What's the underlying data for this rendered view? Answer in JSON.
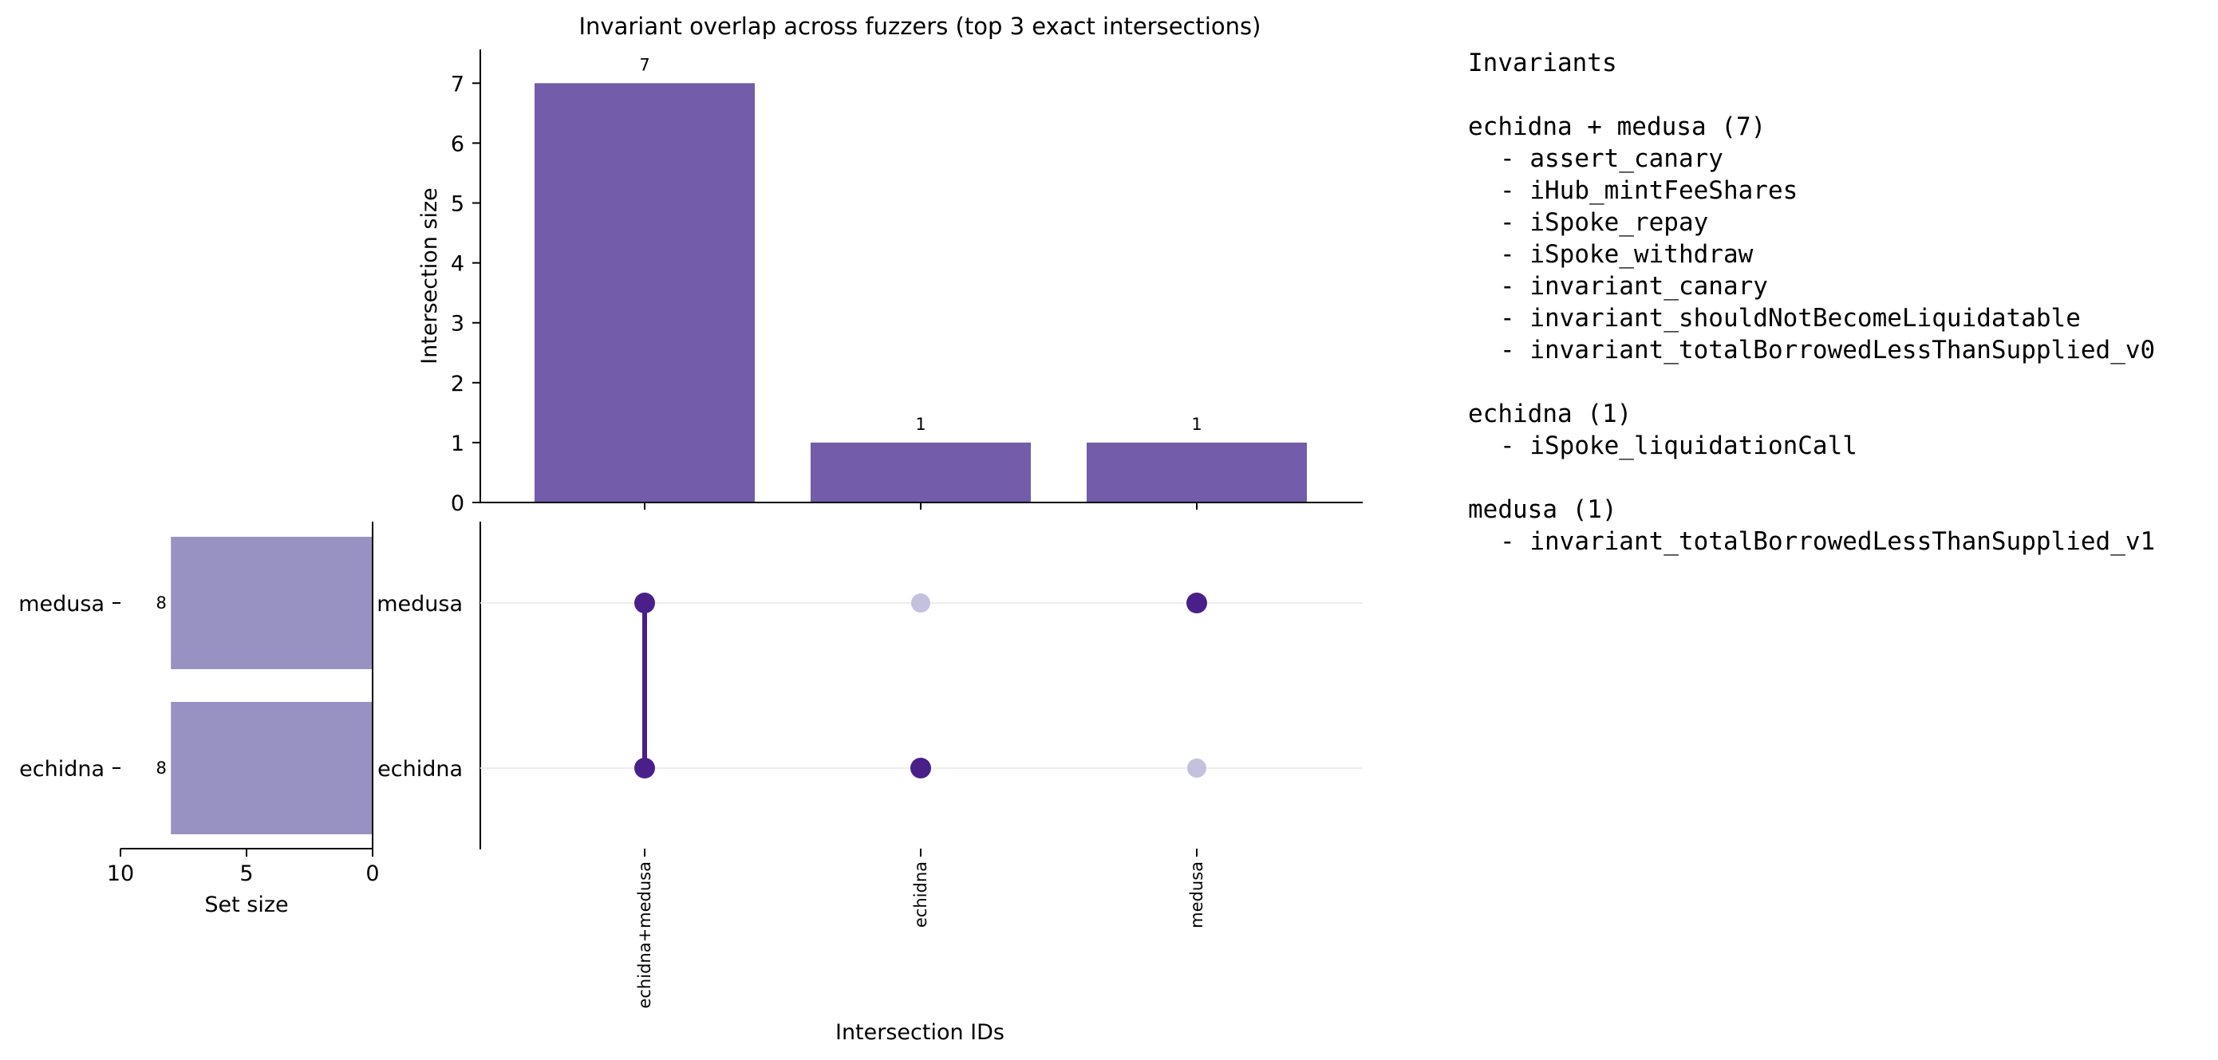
{
  "chart_data": {
    "type": "bar",
    "title": "Invariant overlap across fuzzers (top 3 exact intersections)",
    "ylabel": "Intersection size",
    "xlabel": "Intersection IDs",
    "ylim": [
      0,
      7.6
    ],
    "yticks": [
      0,
      1,
      2,
      3,
      4,
      5,
      6,
      7
    ],
    "categories": [
      "echidna+medusa",
      "echidna",
      "medusa"
    ],
    "values": [
      7,
      1,
      1
    ],
    "bar_color": "#735ca9",
    "sets": [
      {
        "name": "medusa",
        "size": 8
      },
      {
        "name": "echidna",
        "size": 8
      }
    ],
    "membership": [
      {
        "medusa": true,
        "echidna": true
      },
      {
        "medusa": false,
        "echidna": true
      },
      {
        "medusa": true,
        "echidna": false
      }
    ],
    "set_size_label": "Set size",
    "set_size_xlim": [
      10,
      0
    ],
    "set_size_ticks": [
      10,
      5,
      0
    ],
    "set_bar_color": "#9892c3",
    "dot_active_color": "#4a1f8a",
    "dot_inactive_color": "#c3c1de"
  },
  "legend_panel": {
    "header": "Invariants",
    "groups": [
      {
        "title": "echidna + medusa (7)",
        "items": [
          "- assert_canary",
          "- iHub_mintFeeShares",
          "- iSpoke_repay",
          "- iSpoke_withdraw",
          "- invariant_canary",
          "- invariant_shouldNotBecomeLiquidatable",
          "- invariant_totalBorrowedLessThanSupplied_v0"
        ]
      },
      {
        "title": "echidna (1)",
        "items": [
          "- iSpoke_liquidationCall"
        ]
      },
      {
        "title": "medusa (1)",
        "items": [
          "- invariant_totalBorrowedLessThanSupplied_v1"
        ]
      }
    ]
  }
}
